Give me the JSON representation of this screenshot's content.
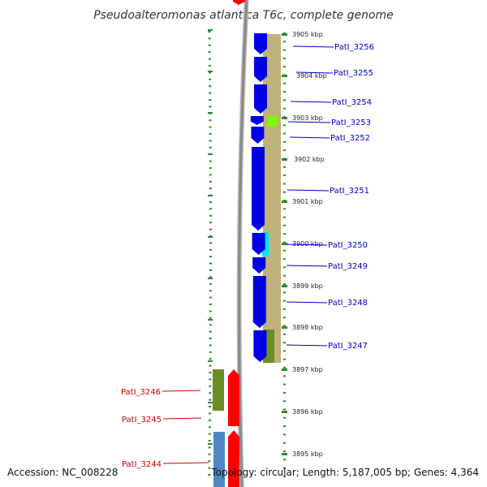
{
  "title": "Pseudoalteromonas atlantica T6c, complete genome",
  "footer": {
    "accession": "Accession: NC_008228",
    "topology": "Topology: circular; Length: 5,187,005 bp; Genes: 4,364"
  },
  "colors": {
    "cds_forward": "#0000e6",
    "cds_reverse": "#ff0000",
    "rna": "#4f86c6",
    "cog_track": "#c0b27a",
    "cog_dark": "#6b8e23",
    "cog_lime": "#7cfc00",
    "cog_cyan": "#00e5ff",
    "label_forward": "#0000cc",
    "label_reverse": "#cc0000",
    "ticks": "#2e8b2e",
    "backbone": "#888888"
  },
  "ticks": [
    "3905 kbp",
    "3904 kbp",
    "3903 kbp",
    "3902 kbp",
    "3901 kbp",
    "3900 kbp",
    "3899 kbp",
    "3898 kbp",
    "3897 kbp",
    "3896 kbp",
    "3895 kbp"
  ],
  "genes_forward": [
    "PatI_3256",
    "PatI_3255",
    "PatI_3254",
    "PatI_3253",
    "PatI_3252",
    "PatI_3251",
    "PatI_3250",
    "PatI_3249",
    "PatI_3248",
    "PatI_3247"
  ],
  "genes_reverse": [
    "PatI_3246",
    "PatI_3245",
    "PatI_3244"
  ]
}
